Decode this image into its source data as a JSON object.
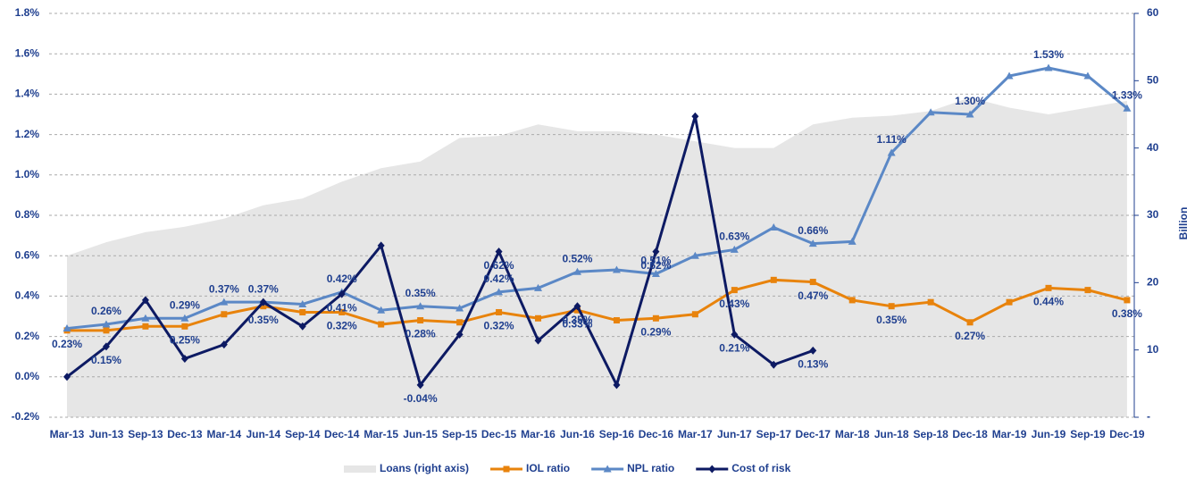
{
  "chart_data": {
    "type": "line",
    "categories": [
      "Mar-13",
      "Jun-13",
      "Sep-13",
      "Dec-13",
      "Mar-14",
      "Jun-14",
      "Sep-14",
      "Dec-14",
      "Mar-15",
      "Jun-15",
      "Sep-15",
      "Dec-15",
      "Mar-16",
      "Jun-16",
      "Sep-16",
      "Dec-16",
      "Mar-17",
      "Jun-17",
      "Sep-17",
      "Dec-17",
      "Mar-18",
      "Jun-18",
      "Sep-18",
      "Dec-18",
      "Mar-19",
      "Jun-19",
      "Sep-19",
      "Dec-19"
    ],
    "ylim": [
      -0.2,
      1.8
    ],
    "yticks": [
      {
        "value": -0.2,
        "label": "-0.2%"
      },
      {
        "value": 0,
        "label": "0.0%"
      },
      {
        "value": 0.2,
        "label": "0.2%"
      },
      {
        "value": 0.4,
        "label": "0.4%"
      },
      {
        "value": 0.6,
        "label": "0.6%"
      },
      {
        "value": 0.8,
        "label": "0.8%"
      },
      {
        "value": 1.0,
        "label": "1.0%"
      },
      {
        "value": 1.2,
        "label": "1.2%"
      },
      {
        "value": 1.4,
        "label": "1.4%"
      },
      {
        "value": 1.6,
        "label": "1.6%"
      },
      {
        "value": 1.8,
        "label": "1.8%"
      }
    ],
    "y2lim": [
      0,
      60
    ],
    "y2ticks": [
      {
        "value": 0,
        "label": "-"
      },
      10,
      20,
      30,
      40,
      50,
      60
    ],
    "y2label": "Billion",
    "grid": true,
    "legend": "bottom",
    "series": [
      {
        "name": "Loans (right axis)",
        "type": "area",
        "axis": "y2",
        "color": "#e6e6e6",
        "values": [
          24,
          26,
          27.5,
          28.3,
          29.5,
          31.5,
          32.5,
          35,
          37,
          38,
          41.5,
          41.8,
          43.5,
          42.5,
          42.5,
          42,
          41,
          40,
          40,
          43.5,
          44.5,
          44.8,
          45.5,
          47.5,
          46,
          45,
          46,
          47
        ]
      },
      {
        "name": "IOL ratio",
        "color": "#e8830c",
        "marker": "square",
        "values": [
          0.23,
          0.23,
          0.25,
          0.25,
          0.31,
          0.35,
          0.32,
          0.32,
          0.26,
          0.28,
          0.27,
          0.32,
          0.29,
          0.33,
          0.28,
          0.29,
          0.31,
          0.43,
          0.48,
          0.47,
          0.38,
          0.35,
          0.37,
          0.27,
          0.37,
          0.44,
          0.43,
          0.38
        ],
        "value_labels": [
          "0.23%",
          null,
          null,
          "0.25%",
          null,
          "0.35%",
          null,
          "0.32%",
          null,
          "0.28%",
          null,
          "0.32%",
          null,
          "0.33%",
          null,
          "0.29%",
          null,
          "0.43%",
          null,
          "0.47%",
          null,
          "0.35%",
          null,
          "0.27%",
          null,
          "0.44%",
          null,
          "0.38%"
        ]
      },
      {
        "name": "NPL ratio",
        "color": "#5b88c6",
        "marker": "triangle",
        "values": [
          0.24,
          0.26,
          0.29,
          0.29,
          0.37,
          0.37,
          0.36,
          0.42,
          0.33,
          0.35,
          0.34,
          0.42,
          0.44,
          0.52,
          0.53,
          0.51,
          0.6,
          0.63,
          0.74,
          0.66,
          0.67,
          1.11,
          1.31,
          1.3,
          1.49,
          1.53,
          1.49,
          1.33
        ],
        "value_labels": [
          null,
          "0.26%",
          null,
          "0.29%",
          "0.37%",
          "0.37%",
          null,
          "0.42%",
          null,
          "0.35%",
          null,
          "0.42%",
          null,
          "0.52%",
          null,
          "0.51%",
          null,
          "0.63%",
          null,
          "0.66%",
          null,
          "1.11%",
          null,
          "1.30%",
          null,
          "1.53%",
          null,
          "1.33%"
        ]
      },
      {
        "name": "Cost of risk",
        "color": "#0d1a63",
        "marker": "diamond",
        "values": [
          0.0,
          0.15,
          0.38,
          0.09,
          0.16,
          0.37,
          0.25,
          0.41,
          0.65,
          -0.04,
          0.21,
          0.62,
          0.18,
          0.35,
          -0.04,
          0.62,
          1.29,
          0.21,
          0.06,
          0.13,
          null,
          null,
          null,
          null,
          null,
          null,
          null,
          null
        ],
        "value_labels": [
          null,
          "0.15%",
          null,
          null,
          null,
          null,
          null,
          "0.41%",
          null,
          "-0.04%",
          null,
          "0.62%",
          null,
          "0.35%",
          null,
          "0.62%",
          null,
          "0.21%",
          null,
          "0.13%",
          null,
          null,
          null,
          null,
          null,
          null,
          null,
          null
        ]
      }
    ]
  }
}
